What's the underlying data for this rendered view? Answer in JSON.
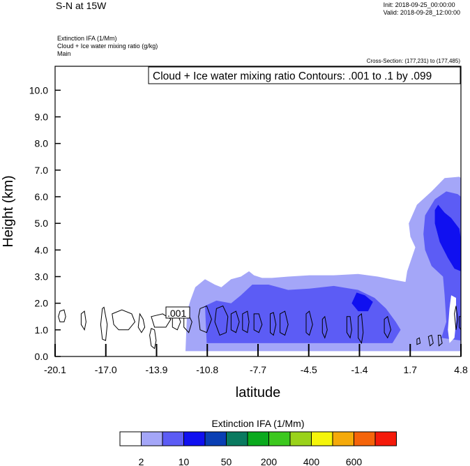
{
  "header": {
    "title": "S-N at 15W",
    "init": "Init: 2018-09-25_00:00:00",
    "valid": "Valid: 2018-09-28_12:00:00",
    "field1": "Extinction IFA   (1/Mm)",
    "field2": "Cloud + Ice water mixing ratio   (g/kg)",
    "field3": "Main",
    "cross_section": "Cross-Section: (177,231) to (177,485)"
  },
  "chart_data": {
    "type": "heatmap",
    "annotation": "Cloud + Ice water mixing ratio Contours: .001 to .1 by .099",
    "contour_label": ".001",
    "xlabel": "latitude",
    "ylabel": "Height (km)",
    "xlim": [
      -20.1,
      4.8
    ],
    "ylim": [
      0.0,
      10.9
    ],
    "x_ticks": [
      "-20.1",
      "-17.0",
      "-13.9",
      "-10.8",
      "-7.7",
      "-4.5",
      "-1.4",
      "1.7",
      "4.8"
    ],
    "y_ticks": [
      "0.0",
      "1.0",
      "2.0",
      "3.0",
      "4.0",
      "5.0",
      "6.0",
      "7.0",
      "8.0",
      "9.0",
      "10.0"
    ],
    "colorbar": {
      "title": "Extinction IFA  (1/Mm)",
      "colors": [
        "#ffffff",
        "#a4a6f8",
        "#5c5cf5",
        "#1010f0",
        "#0a3fb4",
        "#0a7a60",
        "#0aaa1e",
        "#3cc81e",
        "#9ad21a",
        "#f5f50a",
        "#f5aa0a",
        "#f5640a",
        "#f51a0a"
      ],
      "labels": [
        "2",
        "10",
        "50",
        "200",
        "400",
        "600"
      ]
    },
    "regions": [
      {
        "level": 1,
        "color": "#a4a6f8",
        "points": [
          [
            -12.1,
            0.2
          ],
          [
            -12.0,
            1.7
          ],
          [
            -11.8,
            2.1
          ],
          [
            -11.5,
            2.6
          ],
          [
            -10.9,
            2.9
          ],
          [
            -10.3,
            2.7
          ],
          [
            -9.9,
            2.6
          ],
          [
            -9.3,
            2.9
          ],
          [
            -8.7,
            3.0
          ],
          [
            -8.2,
            3.2
          ],
          [
            -7.9,
            3.05
          ],
          [
            -7.4,
            2.95
          ],
          [
            -6.8,
            2.95
          ],
          [
            -5.8,
            3.0
          ],
          [
            -4.5,
            3.05
          ],
          [
            -3.0,
            3.05
          ],
          [
            -1.5,
            3.1
          ],
          [
            -0.3,
            3.0
          ],
          [
            0.5,
            2.9
          ],
          [
            1.4,
            2.8
          ],
          [
            1.5,
            3.2
          ],
          [
            2.0,
            4.1
          ],
          [
            1.7,
            4.5
          ],
          [
            1.6,
            5.0
          ],
          [
            2.1,
            5.7
          ],
          [
            3.0,
            6.2
          ],
          [
            3.8,
            6.7
          ],
          [
            4.7,
            6.75
          ],
          [
            4.8,
            6.7
          ],
          [
            4.8,
            0.2
          ],
          [
            1.7,
            0.2
          ],
          [
            -1.4,
            0.2
          ],
          [
            -4.5,
            0.2
          ],
          [
            -7.7,
            0.2
          ],
          [
            -10.8,
            0.2
          ]
        ]
      },
      {
        "level": 2,
        "color": "#5c5cf5",
        "points": [
          [
            -10.8,
            0.5
          ],
          [
            -10.9,
            1.9
          ],
          [
            -10.2,
            2.1
          ],
          [
            -9.3,
            2.0
          ],
          [
            -8.7,
            2.3
          ],
          [
            -8.0,
            2.7
          ],
          [
            -7.0,
            2.7
          ],
          [
            -6.4,
            2.6
          ],
          [
            -5.8,
            2.5
          ],
          [
            -4.5,
            2.55
          ],
          [
            -3.0,
            2.65
          ],
          [
            -1.5,
            2.5
          ],
          [
            -0.5,
            2.2
          ],
          [
            0.2,
            1.8
          ],
          [
            0.8,
            1.3
          ],
          [
            1.1,
            1.0
          ],
          [
            0.6,
            0.5
          ],
          [
            -1.4,
            0.5
          ],
          [
            -4.5,
            0.5
          ],
          [
            -7.7,
            0.5
          ]
        ]
      },
      {
        "level": 2,
        "color": "#5c5cf5",
        "points": [
          [
            3.6,
            0.7
          ],
          [
            3.9,
            1.3
          ],
          [
            3.8,
            2.3
          ],
          [
            3.7,
            3.0
          ],
          [
            3.0,
            3.4
          ],
          [
            2.6,
            4.0
          ],
          [
            2.5,
            4.6
          ],
          [
            2.6,
            5.3
          ],
          [
            3.2,
            5.9
          ],
          [
            3.9,
            6.2
          ],
          [
            4.6,
            6.1
          ],
          [
            4.8,
            6.0
          ],
          [
            4.8,
            0.6
          ]
        ]
      },
      {
        "level": 3,
        "color": "#1010f0",
        "points": [
          [
            3.4,
            5.7
          ],
          [
            3.8,
            5.4
          ],
          [
            4.2,
            5.2
          ],
          [
            4.7,
            4.8
          ],
          [
            4.8,
            4.4
          ],
          [
            4.8,
            3.2
          ],
          [
            4.4,
            3.3
          ],
          [
            4.0,
            3.7
          ],
          [
            3.5,
            4.3
          ],
          [
            3.2,
            5.0
          ],
          [
            3.2,
            5.5
          ]
        ]
      },
      {
        "level": 3,
        "color": "#1010f0",
        "points": [
          [
            -1.9,
            2.0
          ],
          [
            -1.6,
            2.4
          ],
          [
            -1.1,
            2.3
          ],
          [
            -0.6,
            2.05
          ],
          [
            -0.9,
            1.7
          ],
          [
            -1.5,
            1.7
          ]
        ]
      },
      {
        "level": 0,
        "color": "#ffffff",
        "points": [
          [
            4.0,
            1.0
          ],
          [
            4.1,
            1.8
          ],
          [
            4.2,
            2.3
          ],
          [
            4.5,
            2.2
          ],
          [
            4.5,
            1.3
          ],
          [
            4.4,
            0.7
          ],
          [
            4.1,
            0.5
          ]
        ]
      }
    ],
    "contours": [
      {
        "points": [
          [
            -19.8,
            1.7
          ],
          [
            -19.55,
            1.75
          ],
          [
            -19.45,
            1.5
          ],
          [
            -19.55,
            1.3
          ],
          [
            -19.8,
            1.3
          ],
          [
            -19.9,
            1.5
          ]
        ]
      },
      {
        "points": [
          [
            -18.5,
            1.6
          ],
          [
            -18.3,
            1.7
          ],
          [
            -18.2,
            1.3
          ],
          [
            -18.3,
            1.0
          ],
          [
            -18.5,
            1.2
          ]
        ]
      },
      {
        "points": [
          [
            -17.2,
            1.8
          ],
          [
            -17.1,
            1.85
          ],
          [
            -16.9,
            1.2
          ],
          [
            -17.0,
            0.6
          ],
          [
            -17.2,
            0.65
          ],
          [
            -17.3,
            1.2
          ]
        ]
      },
      {
        "points": [
          [
            -16.6,
            1.6
          ],
          [
            -16.0,
            1.75
          ],
          [
            -15.4,
            1.6
          ],
          [
            -15.2,
            1.3
          ],
          [
            -15.6,
            1.0
          ],
          [
            -16.2,
            1.0
          ],
          [
            -16.5,
            1.2
          ]
        ]
      },
      {
        "points": [
          [
            -14.9,
            1.6
          ],
          [
            -14.7,
            1.4
          ],
          [
            -14.6,
            1.1
          ],
          [
            -14.8,
            0.9
          ],
          [
            -15.0,
            1.1
          ]
        ]
      },
      {
        "points": [
          [
            -14.2,
            1.5
          ],
          [
            -13.5,
            1.6
          ],
          [
            -13.0,
            1.4
          ],
          [
            -13.3,
            1.1
          ],
          [
            -14.0,
            1.1
          ]
        ]
      },
      {
        "points": [
          [
            -14.2,
            1.05
          ],
          [
            -14.0,
            1.0
          ],
          [
            -13.9,
            0.6
          ],
          [
            -14.0,
            0.3
          ],
          [
            -14.2,
            0.4
          ],
          [
            -14.3,
            0.8
          ]
        ]
      },
      {
        "points": [
          [
            -12.9,
            1.5
          ],
          [
            -12.6,
            1.6
          ],
          [
            -12.4,
            1.3
          ],
          [
            -12.6,
            1.0
          ],
          [
            -12.9,
            1.1
          ]
        ]
      },
      {
        "points": [
          [
            -12.2,
            1.5
          ],
          [
            -11.9,
            1.55
          ],
          [
            -11.7,
            1.3
          ],
          [
            -11.9,
            0.9
          ],
          [
            -12.2,
            1.1
          ]
        ]
      },
      {
        "points": [
          [
            -11.2,
            1.8
          ],
          [
            -10.8,
            1.9
          ],
          [
            -10.5,
            1.4
          ],
          [
            -10.8,
            0.9
          ],
          [
            -11.2,
            1.0
          ],
          [
            -11.3,
            1.5
          ]
        ]
      },
      {
        "points": [
          [
            -10.2,
            1.8
          ],
          [
            -9.8,
            1.9
          ],
          [
            -9.5,
            1.5
          ],
          [
            -9.6,
            0.9
          ],
          [
            -10.0,
            0.8
          ],
          [
            -10.3,
            1.3
          ]
        ]
      },
      {
        "points": [
          [
            -9.3,
            1.6
          ],
          [
            -9.0,
            1.7
          ],
          [
            -8.8,
            1.3
          ],
          [
            -9.0,
            0.9
          ],
          [
            -9.3,
            1.0
          ]
        ]
      },
      {
        "points": [
          [
            -8.6,
            1.6
          ],
          [
            -8.3,
            1.7
          ],
          [
            -8.2,
            1.3
          ],
          [
            -8.3,
            0.9
          ],
          [
            -8.6,
            1.0
          ]
        ]
      },
      {
        "points": [
          [
            -7.9,
            1.6
          ],
          [
            -7.6,
            1.6
          ],
          [
            -7.4,
            1.2
          ],
          [
            -7.6,
            0.9
          ],
          [
            -7.9,
            1.0
          ]
        ]
      },
      {
        "points": [
          [
            -6.9,
            1.6
          ],
          [
            -6.7,
            1.65
          ],
          [
            -6.55,
            1.2
          ],
          [
            -6.7,
            0.8
          ],
          [
            -6.9,
            0.9
          ]
        ]
      },
      {
        "points": [
          [
            -6.3,
            1.6
          ],
          [
            -6.0,
            1.7
          ],
          [
            -5.8,
            1.2
          ],
          [
            -6.0,
            0.8
          ],
          [
            -6.3,
            0.9
          ]
        ]
      },
      {
        "points": [
          [
            -4.7,
            1.6
          ],
          [
            -4.5,
            1.7
          ],
          [
            -4.3,
            1.2
          ],
          [
            -4.5,
            0.8
          ],
          [
            -4.7,
            0.9
          ]
        ]
      },
      {
        "points": [
          [
            -3.7,
            1.4
          ],
          [
            -3.55,
            1.5
          ],
          [
            -3.4,
            1.0
          ],
          [
            -3.55,
            0.7
          ],
          [
            -3.7,
            0.9
          ]
        ]
      },
      {
        "points": [
          [
            -2.2,
            1.5
          ],
          [
            -2.0,
            1.5
          ],
          [
            -1.9,
            1.0
          ],
          [
            -2.0,
            0.7
          ],
          [
            -2.2,
            0.9
          ]
        ]
      },
      {
        "points": [
          [
            -1.5,
            1.5
          ],
          [
            -1.3,
            1.6
          ],
          [
            -1.2,
            0.9
          ],
          [
            -1.3,
            0.5
          ],
          [
            -1.5,
            0.7
          ]
        ]
      },
      {
        "points": [
          [
            0.1,
            1.4
          ],
          [
            0.3,
            1.5
          ],
          [
            0.5,
            1.0
          ],
          [
            0.3,
            0.7
          ],
          [
            0.1,
            0.9
          ]
        ]
      },
      {
        "points": [
          [
            2.1,
            0.65
          ],
          [
            2.25,
            0.7
          ],
          [
            2.3,
            0.5
          ],
          [
            2.1,
            0.45
          ]
        ]
      },
      {
        "points": [
          [
            2.8,
            0.75
          ],
          [
            3.0,
            0.8
          ],
          [
            3.1,
            0.5
          ],
          [
            2.9,
            0.4
          ]
        ]
      },
      {
        "points": [
          [
            3.4,
            0.8
          ],
          [
            3.55,
            0.8
          ],
          [
            3.65,
            0.5
          ],
          [
            3.45,
            0.4
          ]
        ]
      },
      {
        "points": [
          [
            4.4,
            1.6
          ],
          [
            4.5,
            1.9
          ],
          [
            4.6,
            1.4
          ],
          [
            4.5,
            1.0
          ]
        ]
      },
      {
        "points": [
          [
            4.7,
            1.5
          ],
          [
            4.8,
            1.5
          ],
          [
            4.8,
            1.0
          ],
          [
            4.7,
            1.1
          ]
        ]
      }
    ]
  }
}
